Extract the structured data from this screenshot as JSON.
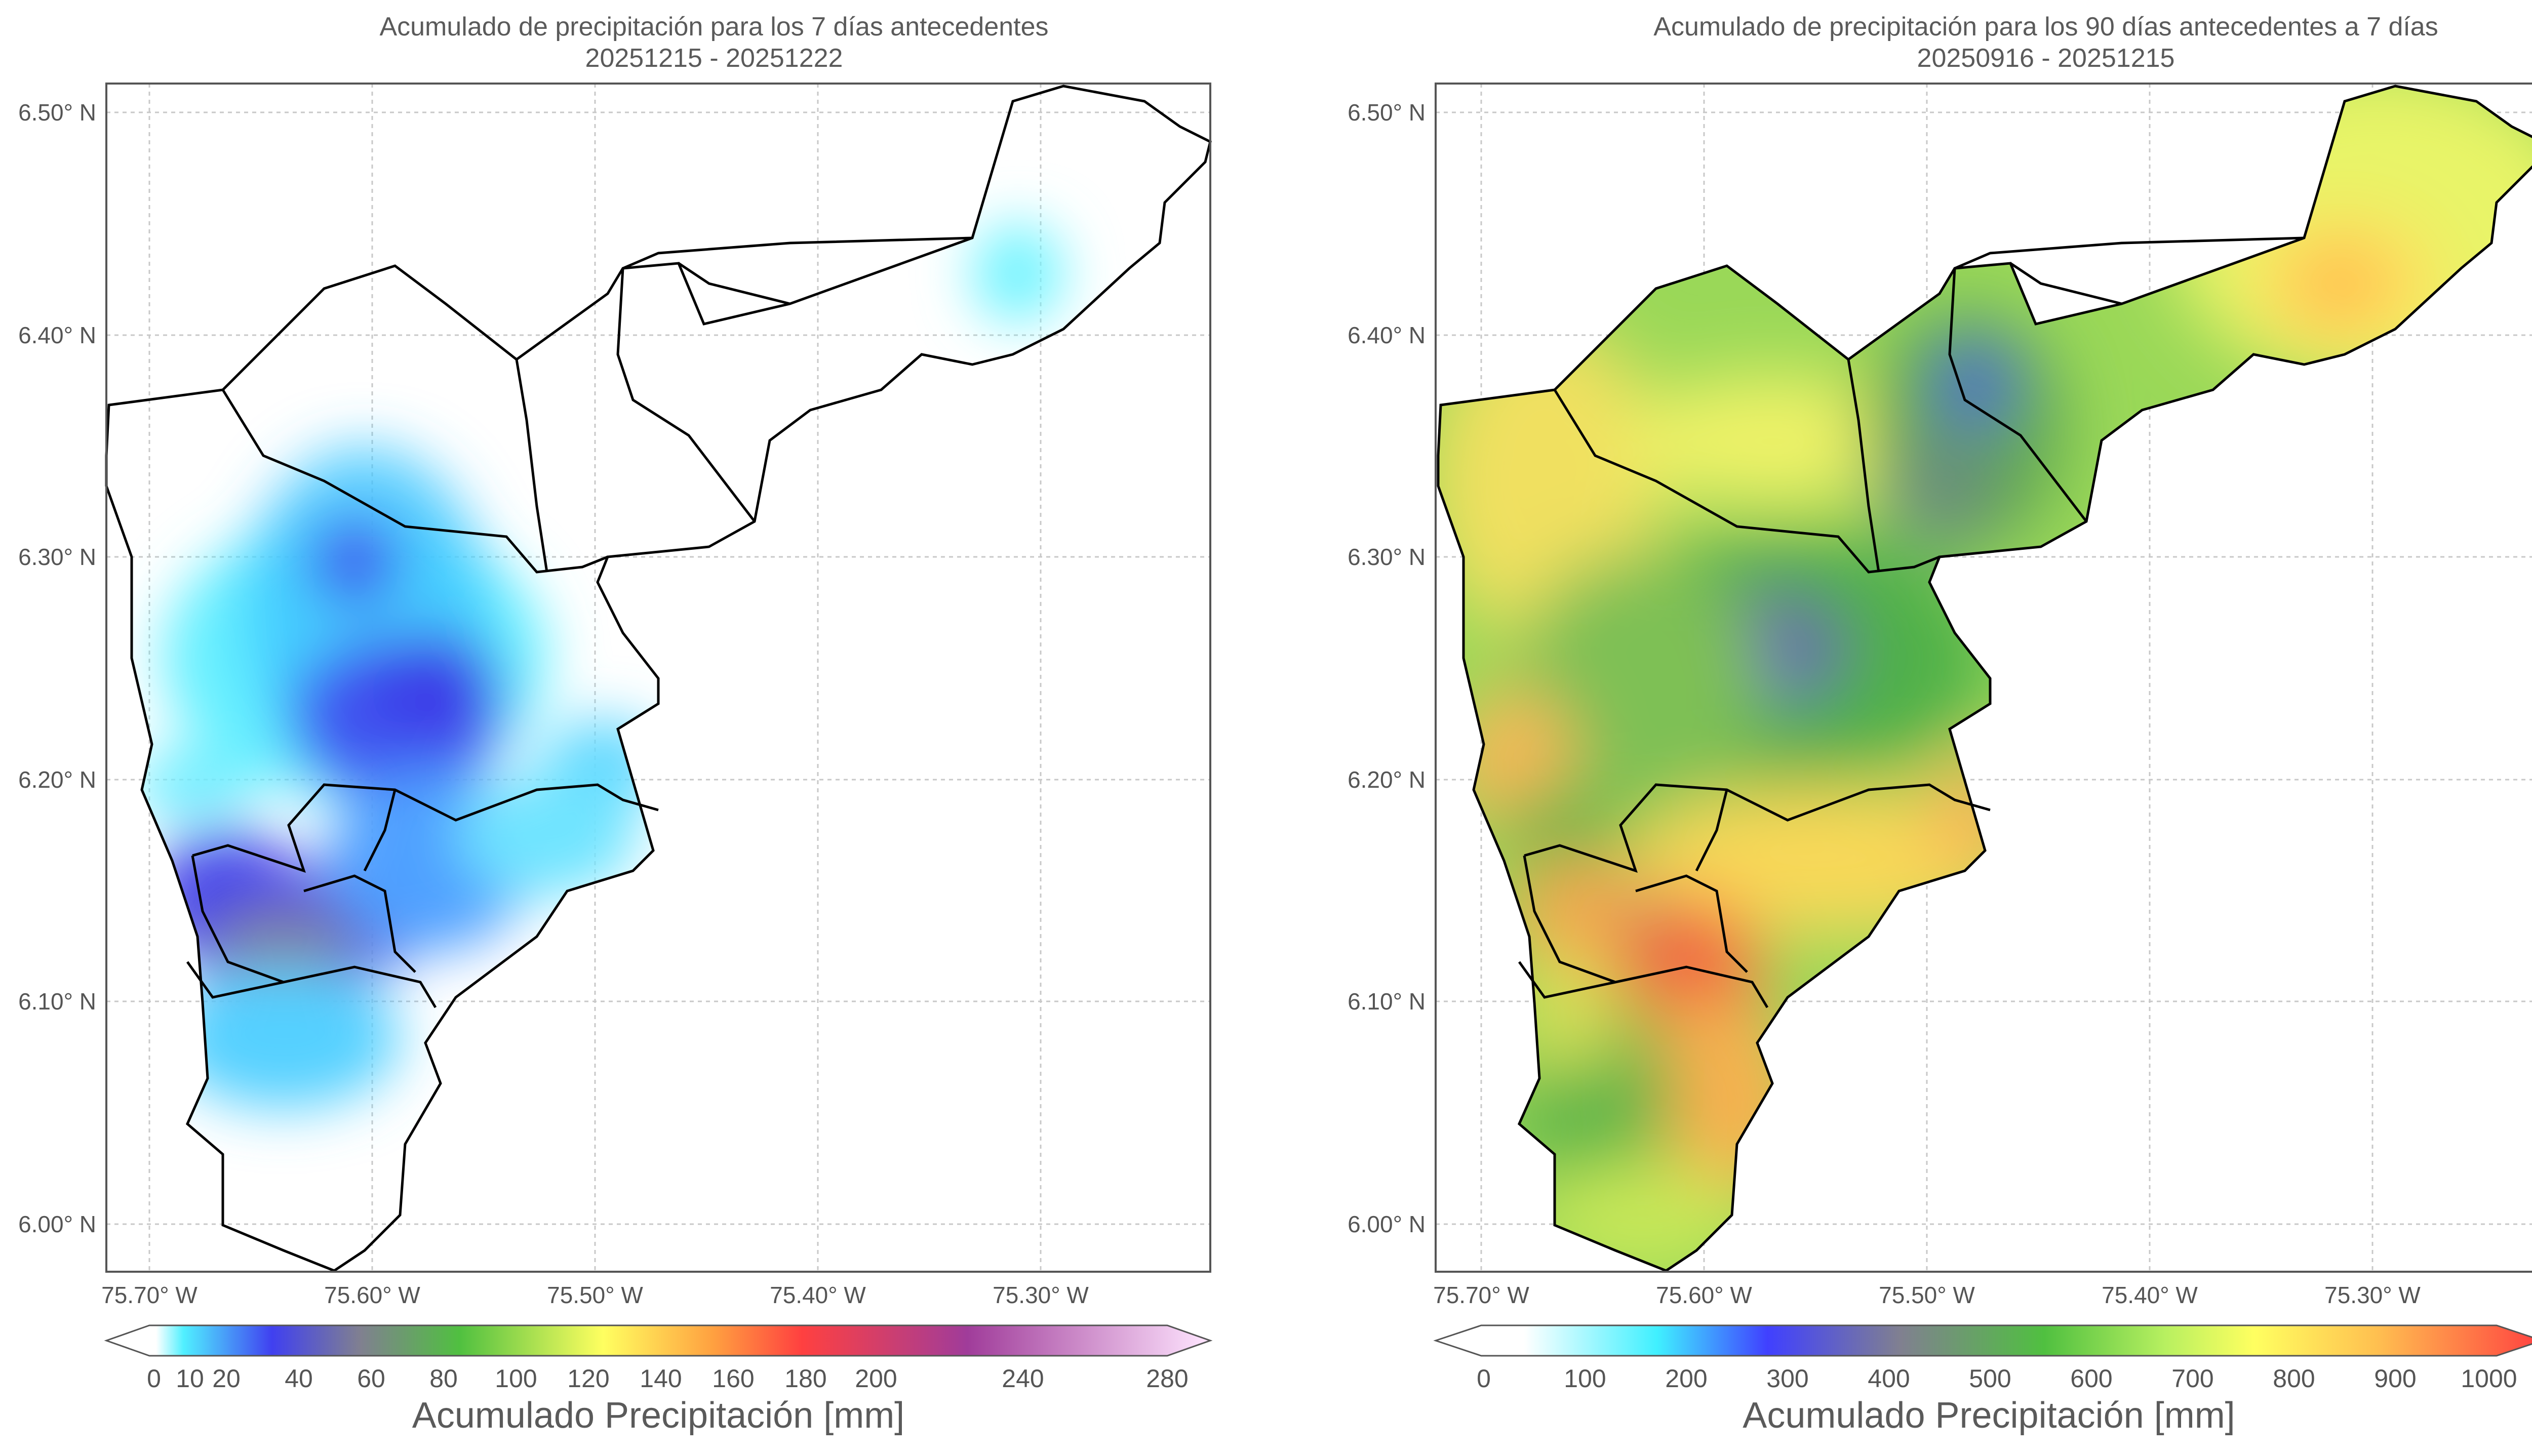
{
  "left_map": {
    "title_line1": "Acumulado de precipitación para los 7 días antecedentes",
    "title_line2": "20251215 - 20251222",
    "lat_ticks": [
      "6.50° N",
      "6.40° N",
      "6.30° N",
      "6.20° N",
      "6.10° N",
      "6.00° N"
    ],
    "lon_ticks": [
      "75.70° W",
      "75.60° W",
      "75.50° W",
      "75.40° W",
      "75.30° W"
    ],
    "colorbar_ticks": [
      "0",
      "10",
      "20",
      "40",
      "60",
      "80",
      "100",
      "120",
      "140",
      "160",
      "180",
      "200",
      "240",
      "280"
    ],
    "colorbar_label": "Acumulado Precipitación [mm]"
  },
  "right_map": {
    "title_line1": "Acumulado de precipitación para los 90 días antecedentes a 7 días",
    "title_line2": "20250916 - 20251215",
    "lat_ticks": [
      "6.50° N",
      "6.40° N",
      "6.30° N",
      "6.20° N",
      "6.10° N",
      "6.00° N"
    ],
    "lon_ticks": [
      "75.70° W",
      "75.60° W",
      "75.50° W",
      "75.40° W",
      "75.30° W"
    ],
    "colorbar_ticks": [
      "0",
      "100",
      "200",
      "300",
      "400",
      "500",
      "600",
      "700",
      "800",
      "900",
      "1000"
    ],
    "colorbar_label": "Acumulado Precipitación [mm]"
  },
  "colors": {
    "precip_scale": [
      "#ffffff",
      "#55f0ff",
      "#4040f0",
      "#808080",
      "#60c040",
      "#ffff60",
      "#ffb040",
      "#ff4040",
      "#a050a0",
      "#ffe0ff"
    ],
    "accum_scale": [
      "#ffffff",
      "#40f0ff",
      "#4040ff",
      "#808080",
      "#50c040",
      "#c0f060",
      "#ffff60",
      "#ffc050",
      "#ff4040"
    ]
  }
}
